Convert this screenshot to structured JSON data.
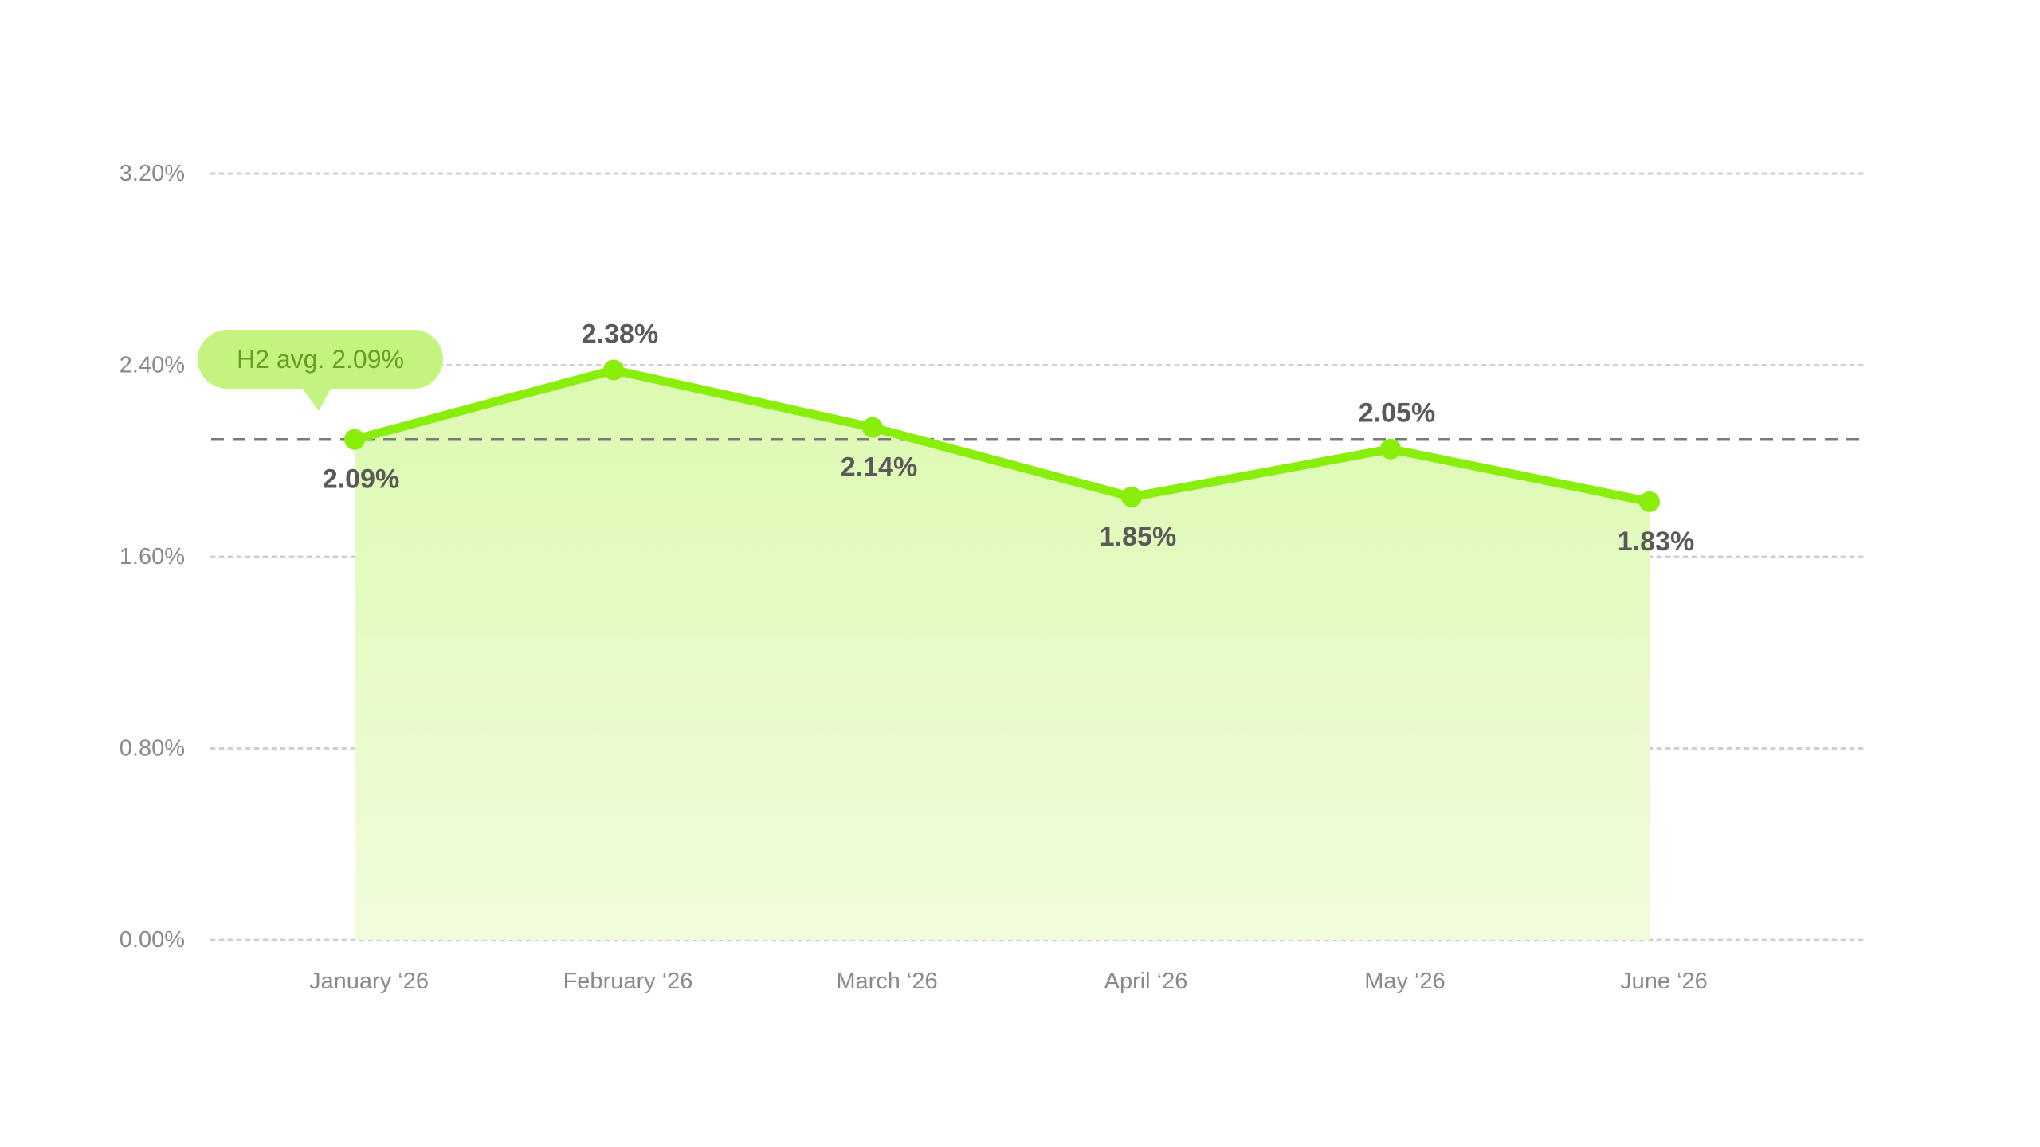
{
  "chart_data": {
    "type": "area",
    "categories": [
      "January ‘26",
      "February ‘26",
      "March ‘26",
      "April ‘26",
      "May ‘26",
      "June ‘26"
    ],
    "values": [
      2.09,
      2.38,
      2.14,
      1.85,
      2.05,
      1.83
    ],
    "value_labels": [
      "2.09%",
      "2.38%",
      "2.14%",
      "1.85%",
      "2.05%",
      "1.83%"
    ],
    "y_ticks": [
      0,
      0.8,
      1.6,
      2.4,
      3.2
    ],
    "y_tick_labels": [
      "0.00%",
      "0.80%",
      "1.60%",
      "2.40%",
      "3.20%"
    ],
    "ylim": [
      0,
      3.2
    ],
    "grid": true,
    "reference_line": {
      "value": 2.09,
      "label": "H2 avg. 2.09%"
    },
    "colors": {
      "line": "#88ee0a",
      "fill_top": "#dcfab0",
      "fill_bottom": "#f1fcdc",
      "avg_badge": "#c4f47f",
      "avg_text": "#6a9e27",
      "avg_line": "#7a7a7a",
      "grid": "#cfcfcf"
    }
  }
}
